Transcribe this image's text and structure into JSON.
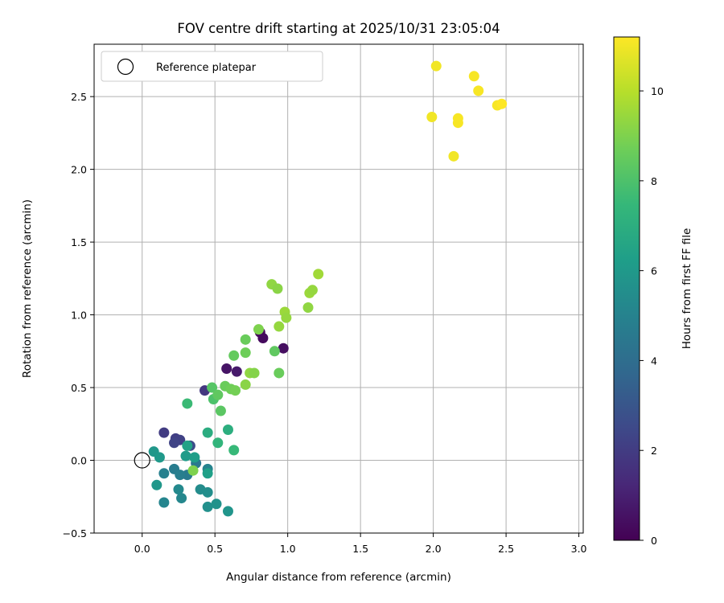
{
  "chart_data": {
    "type": "scatter",
    "title": "FOV centre drift starting at 2025/10/31 23:05:04",
    "xlabel": "Angular distance from reference (arcmin)",
    "ylabel": "Rotation from reference (arcmin)",
    "xlim": [
      -0.33,
      3.03
    ],
    "ylim": [
      -0.5,
      2.86
    ],
    "xticks": [
      0.0,
      0.5,
      1.0,
      1.5,
      2.0,
      2.5,
      3.0
    ],
    "yticks": [
      -0.5,
      0.0,
      0.5,
      1.0,
      1.5,
      2.0,
      2.5
    ],
    "xtick_labels": [
      "0.0",
      "0.5",
      "1.0",
      "1.5",
      "2.0",
      "2.5",
      "3.0"
    ],
    "ytick_labels": [
      "−0.5",
      "0.0",
      "0.5",
      "1.0",
      "1.5",
      "2.0",
      "2.5"
    ],
    "grid": true,
    "legend": {
      "position": "top-left",
      "entries": [
        {
          "label": "Reference platepar",
          "marker": "open-circle",
          "x": 0.0,
          "y": 0.0
        }
      ]
    },
    "colorbar": {
      "label": "Hours from first FF file",
      "range": [
        0,
        11.2
      ],
      "ticks": [
        0,
        2,
        4,
        6,
        8,
        10
      ],
      "tick_labels": [
        "0",
        "2",
        "4",
        "6",
        "8",
        "10"
      ],
      "colormap": "viridis"
    },
    "points": [
      {
        "x": 0.81,
        "y": 0.88,
        "h": 0.2
      },
      {
        "x": 0.83,
        "y": 0.84,
        "h": 0.3
      },
      {
        "x": 0.97,
        "y": 0.77,
        "h": 0.4
      },
      {
        "x": 0.58,
        "y": 0.63,
        "h": 0.6
      },
      {
        "x": 0.65,
        "y": 0.61,
        "h": 0.8
      },
      {
        "x": 0.43,
        "y": 0.48,
        "h": 1.8
      },
      {
        "x": 0.15,
        "y": 0.19,
        "h": 2.0
      },
      {
        "x": 0.23,
        "y": 0.15,
        "h": 2.1
      },
      {
        "x": 0.26,
        "y": 0.14,
        "h": 2.2
      },
      {
        "x": 0.22,
        "y": 0.12,
        "h": 2.3
      },
      {
        "x": 0.33,
        "y": 0.1,
        "h": 2.6
      },
      {
        "x": 0.37,
        "y": -0.02,
        "h": 4.5
      },
      {
        "x": 0.31,
        "y": -0.1,
        "h": 4.6
      },
      {
        "x": 0.22,
        "y": -0.06,
        "h": 4.7
      },
      {
        "x": 0.26,
        "y": -0.1,
        "h": 4.8
      },
      {
        "x": 0.15,
        "y": -0.09,
        "h": 4.9
      },
      {
        "x": 0.45,
        "y": -0.06,
        "h": 5.0
      },
      {
        "x": 0.15,
        "y": -0.29,
        "h": 5.1
      },
      {
        "x": 0.27,
        "y": -0.26,
        "h": 5.2
      },
      {
        "x": 0.25,
        "y": -0.2,
        "h": 5.3
      },
      {
        "x": 0.4,
        "y": -0.2,
        "h": 5.4
      },
      {
        "x": 0.45,
        "y": -0.22,
        "h": 5.5
      },
      {
        "x": 0.45,
        "y": -0.32,
        "h": 5.6
      },
      {
        "x": 0.51,
        "y": -0.3,
        "h": 5.7
      },
      {
        "x": 0.59,
        "y": -0.35,
        "h": 5.8
      },
      {
        "x": 0.1,
        "y": -0.17,
        "h": 5.9
      },
      {
        "x": 0.08,
        "y": 0.06,
        "h": 5.9
      },
      {
        "x": 0.12,
        "y": 0.02,
        "h": 6.0
      },
      {
        "x": 0.3,
        "y": 0.03,
        "h": 6.1
      },
      {
        "x": 0.36,
        "y": 0.02,
        "h": 6.2
      },
      {
        "x": 0.45,
        "y": -0.09,
        "h": 6.3
      },
      {
        "x": 0.31,
        "y": 0.1,
        "h": 6.4
      },
      {
        "x": 0.45,
        "y": 0.19,
        "h": 6.9
      },
      {
        "x": 0.59,
        "y": 0.21,
        "h": 7.0
      },
      {
        "x": 0.52,
        "y": 0.12,
        "h": 7.3
      },
      {
        "x": 0.63,
        "y": 0.07,
        "h": 7.5
      },
      {
        "x": 0.31,
        "y": 0.39,
        "h": 7.6
      },
      {
        "x": 0.49,
        "y": 0.42,
        "h": 8.0
      },
      {
        "x": 0.48,
        "y": 0.5,
        "h": 8.2
      },
      {
        "x": 0.54,
        "y": 0.34,
        "h": 8.3
      },
      {
        "x": 0.52,
        "y": 0.45,
        "h": 8.4
      },
      {
        "x": 0.57,
        "y": 0.51,
        "h": 8.6
      },
      {
        "x": 0.61,
        "y": 0.49,
        "h": 8.7
      },
      {
        "x": 0.64,
        "y": 0.48,
        "h": 8.8
      },
      {
        "x": 0.63,
        "y": 0.72,
        "h": 8.5
      },
      {
        "x": 0.71,
        "y": 0.83,
        "h": 8.6
      },
      {
        "x": 0.71,
        "y": 0.74,
        "h": 8.7
      },
      {
        "x": 0.91,
        "y": 0.75,
        "h": 8.4
      },
      {
        "x": 0.94,
        "y": 0.6,
        "h": 8.6
      },
      {
        "x": 0.71,
        "y": 0.52,
        "h": 9.2
      },
      {
        "x": 0.74,
        "y": 0.6,
        "h": 9.3
      },
      {
        "x": 0.77,
        "y": 0.6,
        "h": 9.1
      },
      {
        "x": 0.8,
        "y": 0.9,
        "h": 9.0
      },
      {
        "x": 0.89,
        "y": 1.21,
        "h": 9.3
      },
      {
        "x": 0.93,
        "y": 1.18,
        "h": 9.2
      },
      {
        "x": 0.94,
        "y": 0.92,
        "h": 9.4
      },
      {
        "x": 0.98,
        "y": 1.02,
        "h": 9.5
      },
      {
        "x": 0.99,
        "y": 0.98,
        "h": 9.4
      },
      {
        "x": 1.14,
        "y": 1.05,
        "h": 9.3
      },
      {
        "x": 1.15,
        "y": 1.15,
        "h": 9.5
      },
      {
        "x": 1.17,
        "y": 1.17,
        "h": 9.4
      },
      {
        "x": 1.21,
        "y": 1.28,
        "h": 9.6
      },
      {
        "x": 0.35,
        "y": -0.07,
        "h": 9.0
      },
      {
        "x": 1.99,
        "y": 2.36,
        "h": 11.0
      },
      {
        "x": 2.02,
        "y": 2.71,
        "h": 11.0
      },
      {
        "x": 2.14,
        "y": 2.09,
        "h": 11.0
      },
      {
        "x": 2.17,
        "y": 2.35,
        "h": 11.1
      },
      {
        "x": 2.17,
        "y": 2.32,
        "h": 11.1
      },
      {
        "x": 2.28,
        "y": 2.64,
        "h": 11.1
      },
      {
        "x": 2.31,
        "y": 2.54,
        "h": 11.1
      },
      {
        "x": 2.44,
        "y": 2.44,
        "h": 11.1
      },
      {
        "x": 2.47,
        "y": 2.45,
        "h": 11.2
      }
    ]
  }
}
